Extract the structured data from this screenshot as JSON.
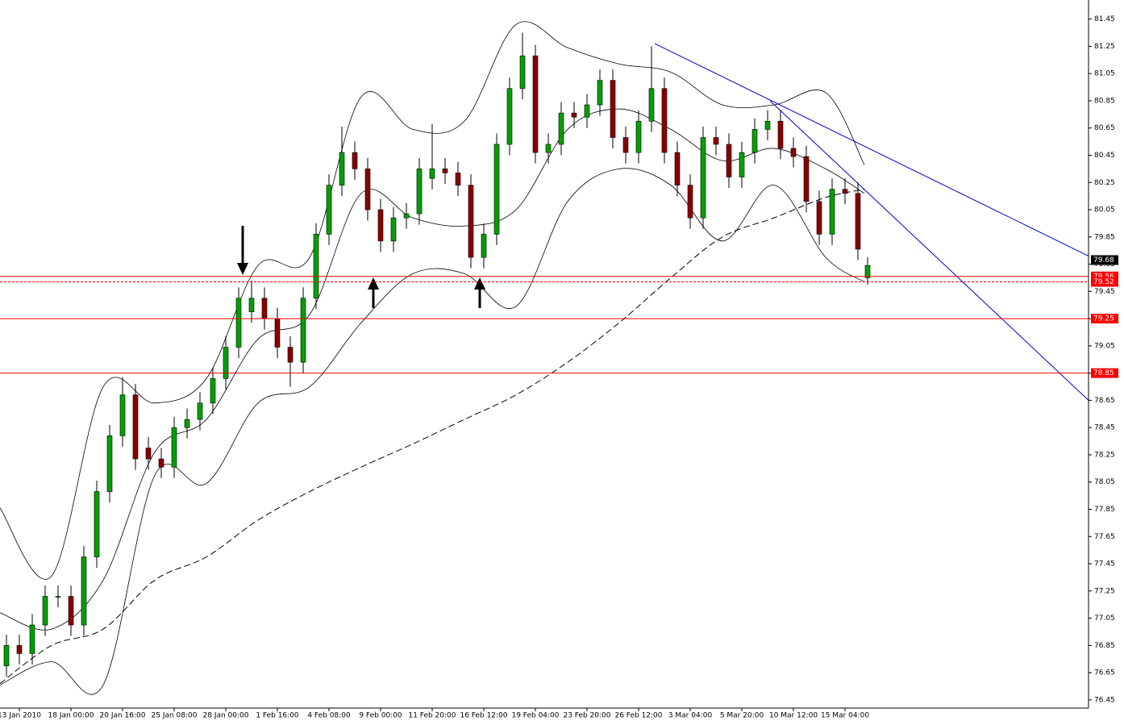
{
  "chart_data": {
    "type": "candlestick",
    "xlim": [
      0,
      337.5
    ],
    "ylim": [
      76.39,
      81.59
    ],
    "yticks": [
      81.45,
      81.25,
      81.05,
      80.85,
      80.65,
      80.45,
      80.25,
      80.05,
      79.85,
      79.65,
      79.45,
      79.25,
      79.05,
      78.85,
      78.65,
      78.45,
      78.25,
      78.05,
      77.85,
      77.65,
      77.45,
      77.25,
      77.05,
      76.85,
      76.65,
      76.45
    ],
    "xticks": [
      {
        "value": 6,
        "label": "13 Jan 2010"
      },
      {
        "value": 22,
        "label": "18 Jan 00:00"
      },
      {
        "value": 38,
        "label": "20 Jan 16:00"
      },
      {
        "value": 54,
        "label": "25 Jan 08:00"
      },
      {
        "value": 70,
        "label": "28 Jan 00:00"
      },
      {
        "value": 86,
        "label": "1 Feb 16:00"
      },
      {
        "value": 102,
        "label": "4 Feb 08:00"
      },
      {
        "value": 118,
        "label": "9 Feb 00:00"
      },
      {
        "value": 134,
        "label": "11 Feb 20:00"
      },
      {
        "value": 150,
        "label": "16 Feb 12:00"
      },
      {
        "value": 166,
        "label": "19 Feb 04:00"
      },
      {
        "value": 182,
        "label": "23 Feb 20:00"
      },
      {
        "value": 198,
        "label": "26 Feb 12:00"
      },
      {
        "value": 214,
        "label": "3 Mar 04:00"
      },
      {
        "value": 230,
        "label": "5 Mar 20:00"
      },
      {
        "value": 246,
        "label": "10 Mar 12:00"
      },
      {
        "value": 262,
        "label": "15 Mar 04:00"
      }
    ],
    "x": [
      2,
      6,
      10,
      14,
      18,
      22,
      26,
      30,
      34,
      38,
      42,
      46,
      50,
      54,
      58,
      62,
      66,
      70,
      74,
      78,
      82,
      86,
      90,
      94,
      98,
      102,
      106,
      110,
      114,
      118,
      122,
      126,
      130,
      134,
      138,
      142,
      146,
      150,
      154,
      158,
      162,
      166,
      170,
      174,
      178,
      182,
      186,
      190,
      194,
      198,
      202,
      206,
      210,
      214,
      218,
      222,
      226,
      230,
      234,
      238,
      242,
      246,
      250,
      254,
      258,
      262,
      266,
      269
    ],
    "open": [
      76.7,
      76.85,
      76.79,
      77.0,
      77.21,
      77.21,
      77.0,
      77.5,
      77.98,
      78.39,
      78.69,
      78.3,
      78.22,
      78.16,
      78.45,
      78.51,
      78.63,
      78.81,
      79.04,
      79.3,
      79.4,
      79.25,
      79.04,
      78.93,
      79.4,
      79.87,
      80.23,
      80.47,
      80.35,
      80.05,
      79.82,
      79.99,
      80.02,
      80.28,
      80.35,
      80.32,
      80.23,
      79.7,
      79.87,
      80.53,
      80.94,
      81.18,
      80.47,
      80.53,
      80.76,
      80.73,
      80.82,
      81.0,
      80.58,
      80.47,
      80.7,
      80.94,
      80.47,
      80.23,
      79.99,
      80.58,
      80.53,
      80.29,
      80.47,
      80.64,
      80.7,
      80.5,
      80.44,
      80.11,
      79.87,
      80.2,
      80.17,
      79.55
    ],
    "high": [
      76.93,
      76.93,
      77.08,
      77.29,
      77.29,
      77.29,
      77.58,
      78.06,
      78.47,
      78.82,
      78.77,
      78.38,
      78.3,
      78.53,
      78.59,
      78.71,
      78.89,
      79.12,
      79.48,
      79.53,
      79.48,
      79.33,
      79.12,
      79.48,
      79.95,
      80.31,
      80.66,
      80.55,
      80.43,
      80.13,
      80.07,
      80.1,
      80.43,
      80.68,
      80.43,
      80.4,
      80.31,
      79.95,
      80.61,
      81.02,
      81.35,
      81.26,
      80.61,
      80.84,
      80.84,
      80.9,
      81.08,
      81.08,
      80.66,
      80.78,
      81.25,
      81.02,
      80.55,
      80.31,
      80.66,
      80.66,
      80.61,
      80.55,
      80.72,
      80.78,
      80.78,
      80.58,
      80.52,
      80.19,
      80.28,
      80.28,
      80.25,
      79.7
    ],
    "low": [
      76.62,
      76.71,
      76.71,
      76.92,
      77.13,
      76.92,
      76.92,
      77.42,
      77.9,
      78.31,
      78.14,
      78.14,
      78.08,
      78.08,
      78.37,
      78.43,
      78.55,
      78.73,
      78.96,
      79.22,
      79.17,
      78.96,
      78.75,
      78.85,
      79.32,
      79.79,
      80.15,
      80.27,
      79.97,
      79.74,
      79.74,
      79.91,
      79.94,
      80.2,
      80.24,
      80.15,
      79.62,
      79.62,
      79.79,
      80.45,
      80.86,
      80.39,
      80.39,
      80.45,
      80.65,
      80.65,
      80.74,
      80.5,
      80.39,
      80.39,
      80.62,
      80.39,
      80.15,
      79.91,
      79.91,
      80.45,
      80.21,
      80.21,
      80.39,
      80.56,
      80.42,
      80.36,
      80.03,
      79.79,
      79.79,
      80.09,
      79.68,
      79.5
    ],
    "close": [
      76.85,
      76.79,
      77.0,
      77.21,
      77.21,
      77.0,
      77.5,
      77.98,
      78.39,
      78.69,
      78.22,
      78.22,
      78.16,
      78.45,
      78.51,
      78.63,
      78.81,
      79.04,
      79.4,
      79.4,
      79.25,
      79.04,
      78.93,
      79.4,
      79.87,
      80.23,
      80.47,
      80.35,
      80.05,
      79.82,
      79.99,
      80.02,
      80.35,
      80.35,
      80.32,
      80.23,
      79.7,
      79.87,
      80.53,
      80.94,
      81.18,
      80.47,
      80.53,
      80.76,
      80.73,
      80.82,
      81.0,
      80.58,
      80.47,
      80.7,
      80.94,
      80.47,
      80.23,
      79.99,
      80.58,
      80.53,
      80.29,
      80.47,
      80.64,
      80.7,
      80.5,
      80.44,
      80.11,
      79.87,
      80.2,
      80.17,
      79.76,
      79.64
    ],
    "up_color": "#00a000",
    "down_color": "#8b0000",
    "bands": {
      "x": [
        0,
        16,
        32,
        48,
        64,
        80,
        96,
        112,
        128,
        144,
        160,
        176,
        192,
        208,
        224,
        240,
        256,
        268
      ],
      "upper": [
        77.86,
        77.36,
        78.75,
        78.63,
        78.81,
        79.64,
        79.7,
        80.88,
        80.64,
        80.7,
        81.41,
        81.24,
        81.12,
        81.06,
        80.82,
        80.82,
        80.91,
        80.38
      ],
      "middle": [
        77.09,
        76.97,
        77.33,
        78.27,
        78.51,
        79.1,
        79.28,
        80.17,
        79.99,
        79.93,
        80.05,
        80.64,
        80.79,
        80.64,
        80.41,
        80.5,
        80.35,
        80.17
      ],
      "lower": [
        76.56,
        76.73,
        76.56,
        78.1,
        78.04,
        78.63,
        78.75,
        79.22,
        79.58,
        79.58,
        79.34,
        80.11,
        80.35,
        80.23,
        79.82,
        80.23,
        79.7,
        79.52
      ]
    },
    "ma": {
      "x": [
        0,
        16,
        32,
        48,
        64,
        80,
        96,
        112,
        128,
        144,
        160,
        176,
        192,
        208,
        224,
        240,
        256,
        268
      ],
      "values": [
        76.57,
        76.85,
        76.97,
        77.33,
        77.5,
        77.77,
        77.98,
        78.16,
        78.33,
        78.51,
        78.69,
        78.93,
        79.22,
        79.55,
        79.85,
        79.99,
        80.14,
        80.2
      ]
    },
    "trendlines": [
      {
        "x": [
          203,
          337.5
        ],
        "values": [
          81.27,
          79.71
        ]
      },
      {
        "x": [
          238.75,
          337.5
        ],
        "values": [
          80.85,
          78.65
        ]
      }
    ],
    "levels": [
      {
        "value": 79.56,
        "style": "solid"
      },
      {
        "value": 79.52,
        "style": "dashed"
      },
      {
        "value": 79.25,
        "style": "solid"
      },
      {
        "value": 78.85,
        "style": "solid"
      }
    ],
    "level_color": "#ff0000",
    "current_price": 79.68
  }
}
